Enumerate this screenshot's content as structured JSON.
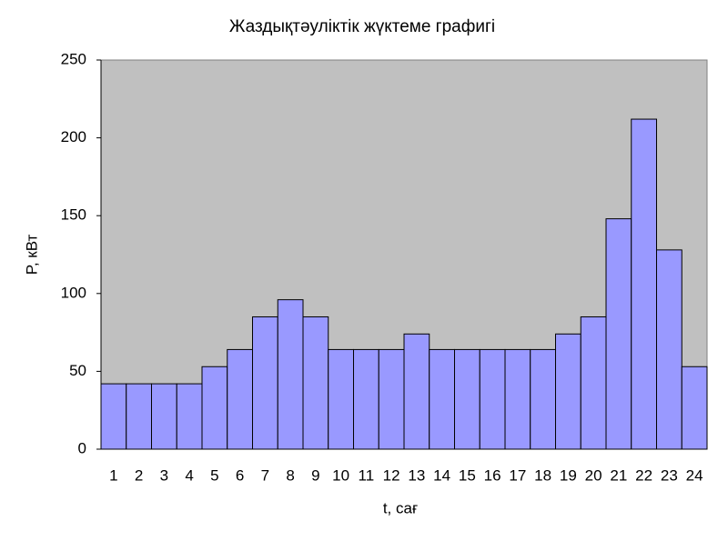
{
  "chart_data": {
    "type": "bar",
    "title": "Жаздықтәуліктік жүктеме графигі",
    "x_label": "t, сағ",
    "y_label": "P, кВт",
    "categories": [
      "1",
      "2",
      "3",
      "4",
      "5",
      "6",
      "7",
      "8",
      "9",
      "10",
      "11",
      "12",
      "13",
      "14",
      "15",
      "16",
      "17",
      "18",
      "19",
      "20",
      "21",
      "22",
      "23",
      "24"
    ],
    "values": [
      42,
      42,
      42,
      42,
      53,
      64,
      85,
      96,
      85,
      64,
      64,
      64,
      74,
      64,
      64,
      64,
      64,
      64,
      74,
      85,
      148,
      212,
      128,
      53
    ],
    "color": "#9999ff",
    "plot_background": "#c0c0c0",
    "ylim": [
      0,
      250
    ],
    "yticks": [
      0,
      50,
      100,
      150,
      200,
      250
    ],
    "grid": false
  }
}
